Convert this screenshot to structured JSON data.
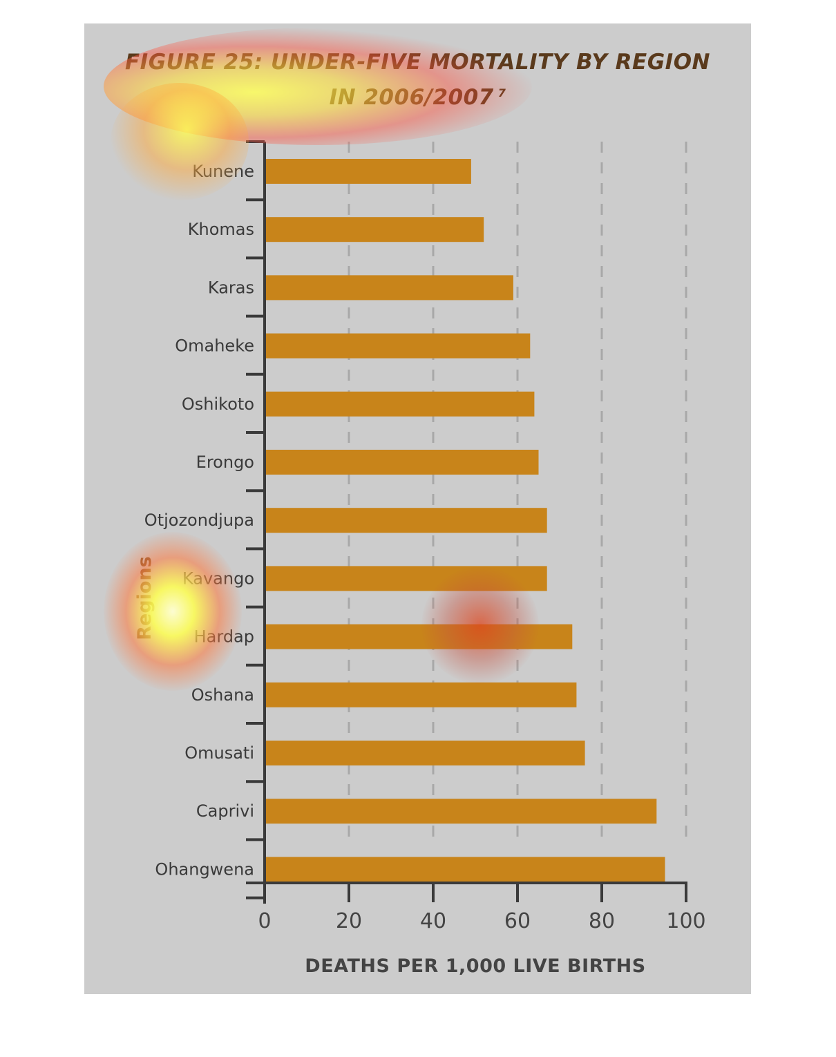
{
  "title": {
    "line1": "FIGURE 25: UNDER-FIVE MORTALITY BY REGION",
    "line2": "IN 2006/2007",
    "superscript": "7"
  },
  "colors": {
    "bar": "#c8841a",
    "axis": "#3a3a3a",
    "grid": "#a8a8a8",
    "background": "#cccccc"
  },
  "chart_data": {
    "type": "bar",
    "orientation": "horizontal",
    "title": "FIGURE 25: UNDER-FIVE MORTALITY BY REGION IN 2006/2007",
    "xlabel": "DEATHS PER 1,000 LIVE BIRTHS",
    "ylabel": "Regions",
    "xlim": [
      0,
      100
    ],
    "xticks": [
      0,
      20,
      40,
      60,
      80,
      100
    ],
    "grid": "vertical dashed",
    "categories": [
      "Kunene",
      "Khomas",
      "Karas",
      "Omaheke",
      "Oshikoto",
      "Erongo",
      "Otjozondjupa",
      "Kavango",
      "Hardap",
      "Oshana",
      "Omusati",
      "Caprivi",
      "Ohangwena"
    ],
    "values": [
      49,
      52,
      59,
      63,
      64,
      65,
      67,
      67,
      73,
      74,
      76,
      93,
      95
    ]
  }
}
